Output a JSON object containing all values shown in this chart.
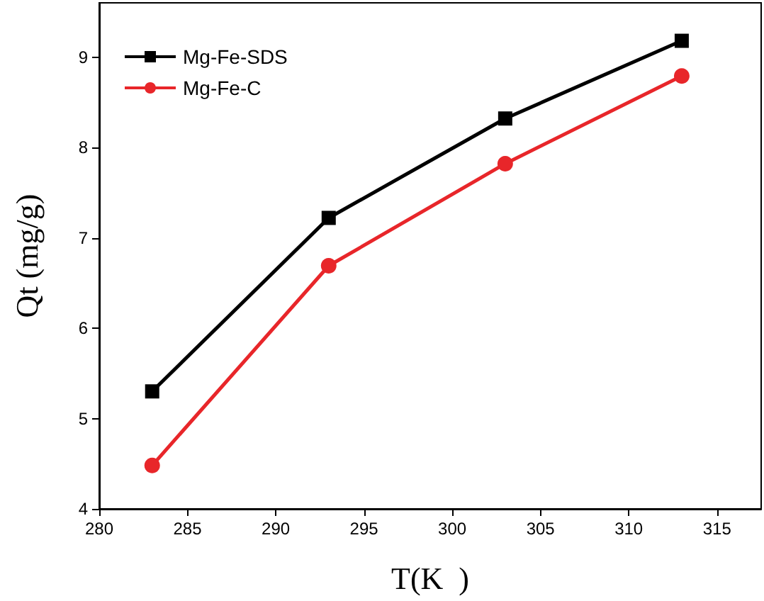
{
  "chart_data": {
    "type": "line",
    "xlabel": "T(K  )",
    "ylabel": "Qt (mg/g)",
    "x": [
      283,
      293,
      303,
      313
    ],
    "series": [
      {
        "name": "Mg-Fe-SDS",
        "color": "#000000",
        "marker": "square",
        "values": [
          5.3,
          7.22,
          8.32,
          9.18
        ]
      },
      {
        "name": "Mg-Fe-C",
        "color": "#e8262a",
        "marker": "circle",
        "values": [
          4.48,
          6.69,
          7.82,
          8.79
        ]
      }
    ],
    "xlim": [
      280,
      317.5
    ],
    "xticks": [
      280,
      285,
      290,
      295,
      300,
      305,
      310,
      315
    ],
    "ylim": [
      4,
      9.6
    ],
    "yticks": [
      4,
      5,
      6,
      7,
      8,
      9
    ],
    "grid": false,
    "legend": "top left",
    "line_style": "solid"
  }
}
